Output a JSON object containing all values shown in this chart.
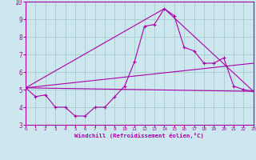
{
  "title": "",
  "xlabel": "Windchill (Refroidissement éolien,°C)",
  "background_color": "#cce8ee",
  "grid_color": "#aacccc",
  "line_color": "#aa00aa",
  "xlim": [
    0,
    23
  ],
  "ylim": [
    3,
    10
  ],
  "yticks": [
    3,
    4,
    5,
    6,
    7,
    8,
    9,
    10
  ],
  "xticks": [
    0,
    1,
    2,
    3,
    4,
    5,
    6,
    7,
    8,
    9,
    10,
    11,
    12,
    13,
    14,
    15,
    16,
    17,
    18,
    19,
    20,
    21,
    22,
    23
  ],
  "series1_x": [
    0,
    1,
    2,
    3,
    4,
    5,
    6,
    7,
    8,
    9,
    10,
    11,
    12,
    13,
    14,
    15,
    16,
    17,
    18,
    19,
    20,
    21,
    22,
    23
  ],
  "series1_y": [
    5.1,
    4.6,
    4.7,
    4.0,
    4.0,
    3.5,
    3.5,
    4.0,
    4.0,
    4.6,
    5.2,
    6.6,
    8.6,
    8.7,
    9.6,
    9.2,
    7.4,
    7.2,
    6.5,
    6.5,
    6.8,
    5.2,
    5.0,
    4.9
  ],
  "series2_x": [
    0,
    23
  ],
  "series2_y": [
    5.1,
    4.9
  ],
  "series3_x": [
    0,
    14,
    23
  ],
  "series3_y": [
    5.1,
    9.6,
    4.9
  ],
  "series4_x": [
    0,
    23
  ],
  "series4_y": [
    5.1,
    6.5
  ]
}
